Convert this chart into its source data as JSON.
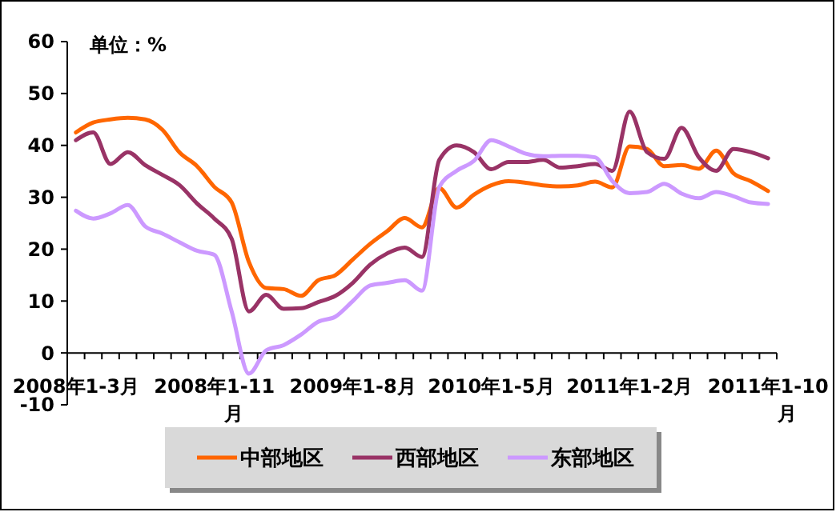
{
  "chart_data": {
    "type": "line",
    "annotations": [
      "单位：%"
    ],
    "categories": [
      "2008年1-3月",
      null,
      null,
      null,
      null,
      null,
      null,
      null,
      "2008年1-11月",
      null,
      null,
      null,
      null,
      null,
      null,
      null,
      "2009年1-8月",
      null,
      null,
      null,
      null,
      null,
      null,
      null,
      "2010年1-5月",
      null,
      null,
      null,
      null,
      null,
      null,
      null,
      "2011年1-2月",
      null,
      null,
      null,
      null,
      null,
      null,
      null,
      "2011年1-10月"
    ],
    "series": [
      {
        "name": "中部地区",
        "color": "#ff6600",
        "values": [
          42.5,
          44.4,
          45,
          45.3,
          45,
          43,
          38.6,
          36,
          32,
          29,
          17.5,
          12.5,
          12.3,
          11,
          14,
          15,
          18,
          21,
          23.5,
          26,
          24.2,
          31.8,
          28,
          30.5,
          32.3,
          33.1,
          32.8,
          32.3,
          32.1,
          32.3,
          33,
          31.9,
          39.8,
          39.3,
          36,
          36.2,
          35.5,
          39,
          34.6,
          33.1,
          31.2
        ]
      },
      {
        "name": "西部地区",
        "color": "#993366",
        "values": [
          41,
          42.5,
          36.4,
          38.7,
          36.2,
          34.3,
          32.3,
          28.8,
          25.9,
          22,
          8,
          11.2,
          8.5,
          8.6,
          9.8,
          11,
          13.5,
          17,
          19.2,
          20.3,
          18.5,
          37.2,
          40,
          38.7,
          35.4,
          36.8,
          36.8,
          37.2,
          35.7,
          36,
          36.4,
          35.1,
          46.5,
          38.7,
          37.4,
          43.4,
          37.7,
          35.1,
          39.3,
          38.7,
          37.5
        ]
      },
      {
        "name": "东部地区",
        "color": "#cc99ff",
        "values": [
          27.4,
          25.9,
          26.9,
          28.5,
          24.4,
          23,
          21.3,
          19.7,
          18.9,
          8,
          -4,
          0.5,
          1.5,
          3.5,
          6,
          7,
          10,
          13,
          13.5,
          14,
          12,
          32,
          35.1,
          37,
          41,
          39.8,
          38.4,
          37.9,
          38,
          38,
          37.7,
          33.1,
          30.8,
          31,
          32.6,
          30.7,
          29.8,
          31,
          30.2,
          29,
          28.7
        ]
      }
    ],
    "ylim": [
      -10,
      60
    ],
    "yticks": [
      -10,
      0,
      10,
      20,
      30,
      40,
      50,
      60
    ],
    "grid": false,
    "legend": "bottom",
    "marker": "none",
    "line_style": "solid"
  }
}
